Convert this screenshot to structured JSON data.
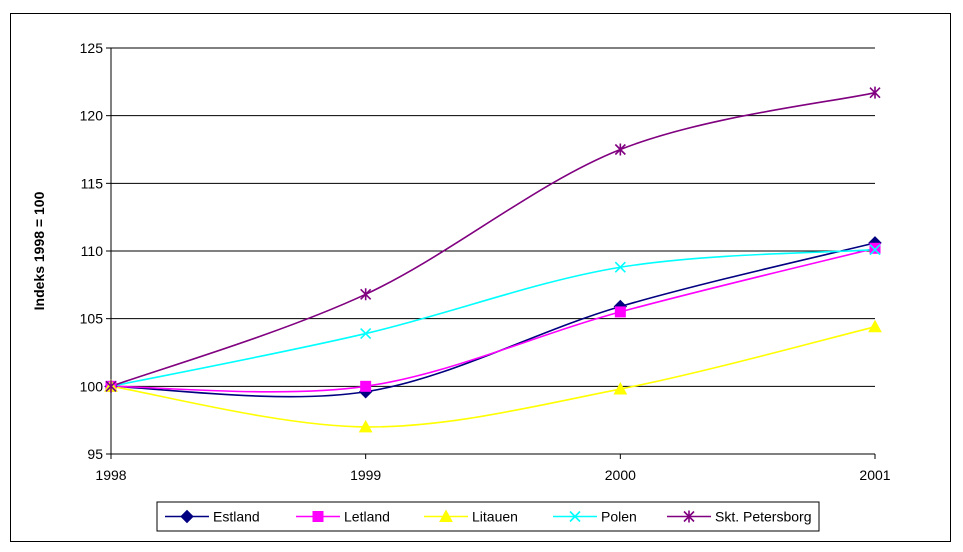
{
  "chart_data": {
    "type": "line",
    "title": "",
    "xlabel": "",
    "ylabel": "Indeks 1998 = 100",
    "x": [
      "1998",
      "1999",
      "2000",
      "2001"
    ],
    "ylim": [
      95,
      125
    ],
    "yticks": [
      "95",
      "100",
      "105",
      "110",
      "115",
      "120",
      "125"
    ],
    "grid": "horizontal",
    "legend_position": "bottom",
    "series": [
      {
        "name": "Estland",
        "values": [
          100,
          99.6,
          105.9,
          110.6
        ],
        "color": "#000080",
        "marker": "diamond"
      },
      {
        "name": "Letland",
        "values": [
          100,
          100.0,
          105.5,
          110.2
        ],
        "color": "#FF00FF",
        "marker": "square"
      },
      {
        "name": "Litauen",
        "values": [
          100,
          97.0,
          99.8,
          104.4
        ],
        "color": "#FFFF00",
        "marker": "triangle"
      },
      {
        "name": "Polen",
        "values": [
          100,
          103.9,
          108.8,
          110.1
        ],
        "color": "#00FFFF",
        "marker": "x"
      },
      {
        "name": "Skt. Petersborg",
        "values": [
          100,
          106.8,
          117.5,
          121.7
        ],
        "color": "#800080",
        "marker": "star"
      }
    ]
  }
}
